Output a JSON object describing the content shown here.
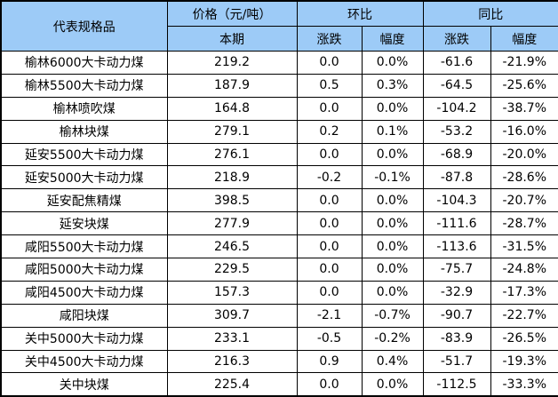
{
  "colors": {
    "header_bg": "#9DCBF7",
    "body_bg": "#FFFFFF",
    "border": "#000000",
    "text": "#000000"
  },
  "chart_data": {
    "type": "table",
    "header": {
      "product": "代表规格品",
      "price_group": "价格（元/吨）",
      "mom_group": "环比",
      "yoy_group": "同比",
      "sub_current": "本期",
      "sub_mom_change": "涨跌",
      "sub_mom_rate": "幅度",
      "sub_yoy_change": "涨跌",
      "sub_yoy_rate": "幅度"
    },
    "rows": [
      {
        "name": "榆林6000大卡动力煤",
        "price": "219.2",
        "mom_change": "0.0",
        "mom_rate": "0.0%",
        "yoy_change": "-61.6",
        "yoy_rate": "-21.9%"
      },
      {
        "name": "榆林5500大卡动力煤",
        "price": "187.9",
        "mom_change": "0.5",
        "mom_rate": "0.3%",
        "yoy_change": "-64.5",
        "yoy_rate": "-25.6%"
      },
      {
        "name": "榆林喷吹煤",
        "price": "164.8",
        "mom_change": "0.0",
        "mom_rate": "0.0%",
        "yoy_change": "-104.2",
        "yoy_rate": "-38.7%"
      },
      {
        "name": "榆林块煤",
        "price": "279.1",
        "mom_change": "0.2",
        "mom_rate": "0.1%",
        "yoy_change": "-53.2",
        "yoy_rate": "-16.0%"
      },
      {
        "name": "延安5500大卡动力煤",
        "price": "276.1",
        "mom_change": "0.0",
        "mom_rate": "0.0%",
        "yoy_change": "-68.9",
        "yoy_rate": "-20.0%"
      },
      {
        "name": "延安5000大卡动力煤",
        "price": "218.9",
        "mom_change": "-0.2",
        "mom_rate": "-0.1%",
        "yoy_change": "-87.8",
        "yoy_rate": "-28.6%"
      },
      {
        "name": "延安配焦精煤",
        "price": "398.5",
        "mom_change": "0.0",
        "mom_rate": "0.0%",
        "yoy_change": "-104.3",
        "yoy_rate": "-20.7%"
      },
      {
        "name": "延安块煤",
        "price": "277.9",
        "mom_change": "0.0",
        "mom_rate": "0.0%",
        "yoy_change": "-111.6",
        "yoy_rate": "-28.7%"
      },
      {
        "name": "咸阳5500大卡动力煤",
        "price": "246.5",
        "mom_change": "0.0",
        "mom_rate": "0.0%",
        "yoy_change": "-113.6",
        "yoy_rate": "-31.5%"
      },
      {
        "name": "咸阳5000大卡动力煤",
        "price": "229.5",
        "mom_change": "0.0",
        "mom_rate": "0.0%",
        "yoy_change": "-75.7",
        "yoy_rate": "-24.8%"
      },
      {
        "name": "咸阳4500大卡动力煤",
        "price": "157.3",
        "mom_change": "0.0",
        "mom_rate": "0.0%",
        "yoy_change": "-32.9",
        "yoy_rate": "-17.3%"
      },
      {
        "name": "咸阳块煤",
        "price": "309.7",
        "mom_change": "-2.1",
        "mom_rate": "-0.7%",
        "yoy_change": "-90.7",
        "yoy_rate": "-22.7%"
      },
      {
        "name": "关中5000大卡动力煤",
        "price": "233.1",
        "mom_change": "-0.5",
        "mom_rate": "-0.2%",
        "yoy_change": "-83.9",
        "yoy_rate": "-26.5%"
      },
      {
        "name": "关中4500大卡动力煤",
        "price": "216.3",
        "mom_change": "0.9",
        "mom_rate": "0.4%",
        "yoy_change": "-51.7",
        "yoy_rate": "-19.3%"
      },
      {
        "name": "关中块煤",
        "price": "225.4",
        "mom_change": "0.0",
        "mom_rate": "0.0%",
        "yoy_change": "-112.5",
        "yoy_rate": "-33.3%"
      }
    ]
  }
}
